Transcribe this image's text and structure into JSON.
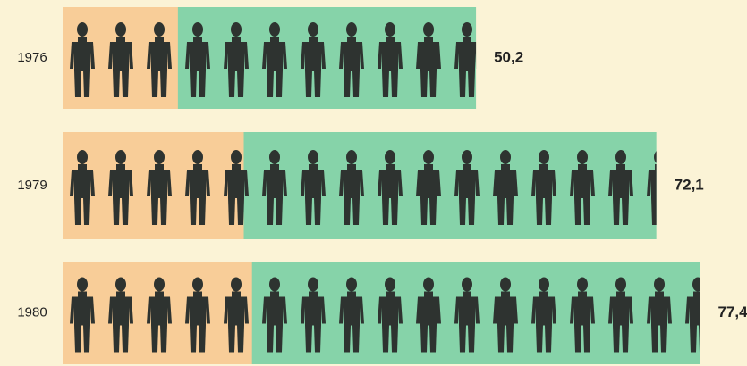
{
  "chart_data": {
    "type": "pictogram-bar",
    "categories": [
      "1976",
      "1979",
      "1980"
    ],
    "xlim": [
      0,
      83
    ],
    "series": [
      {
        "color": "#86d3a9",
        "values": [
          50.2,
          72.1,
          77.4
        ],
        "value_labels": [
          "50,2",
          "72,1",
          "77,4"
        ]
      },
      {
        "color": "#f8cd98",
        "values": [
          14,
          22,
          23
        ]
      }
    ],
    "figure_color": "#2e3330"
  }
}
